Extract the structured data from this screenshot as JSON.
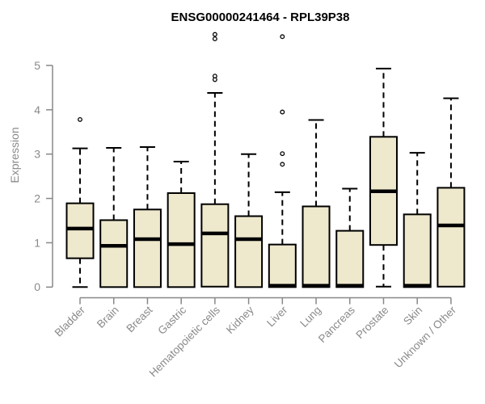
{
  "colors": {
    "background": "#FFFFFF",
    "box_fill": "#EEE8CD",
    "box_stroke": "#000000",
    "median": "#000000",
    "whisker": "#000000",
    "outlier_stroke": "#000000",
    "axis": "#888888",
    "tick_label": "#8A8A8A",
    "title": "#000000"
  },
  "chart_data": {
    "type": "boxplot",
    "title": "ENSG00000241464 - RPL39P38",
    "xlabel": "",
    "ylabel": "Expression",
    "ylim": [
      0,
      5
    ],
    "yticks": [
      0,
      1,
      2,
      3,
      4,
      5
    ],
    "grid": false,
    "legend": "none",
    "categories": [
      "Bladder",
      "Brain",
      "Breast",
      "Gastric",
      "Hematopoietic cells",
      "Kidney",
      "Liver",
      "Lung",
      "Pancreas",
      "Prostate",
      "Skin",
      "Unknown / Other"
    ],
    "series": [
      {
        "name": "Bladder",
        "whisker_low": 0.0,
        "q1": 0.65,
        "median": 1.32,
        "q3": 1.89,
        "whisker_high": 3.13,
        "outliers": [
          3.78
        ]
      },
      {
        "name": "Brain",
        "whisker_low": 0.0,
        "q1": 0.0,
        "median": 0.93,
        "q3": 1.51,
        "whisker_high": 3.14,
        "outliers": []
      },
      {
        "name": "Breast",
        "whisker_low": 0.0,
        "q1": 0.0,
        "median": 1.08,
        "q3": 1.75,
        "whisker_high": 3.16,
        "outliers": []
      },
      {
        "name": "Gastric",
        "whisker_low": 0.0,
        "q1": 0.0,
        "median": 0.97,
        "q3": 2.12,
        "whisker_high": 2.83,
        "outliers": []
      },
      {
        "name": "Hematopoietic cells",
        "whisker_low": 0.01,
        "q1": 0.01,
        "median": 1.21,
        "q3": 1.87,
        "whisker_high": 4.38,
        "outliers": [
          4.68,
          4.76,
          5.6,
          5.7
        ]
      },
      {
        "name": "Kidney",
        "whisker_low": 0.0,
        "q1": 0.0,
        "median": 1.08,
        "q3": 1.6,
        "whisker_high": 3.0,
        "outliers": []
      },
      {
        "name": "Liver",
        "whisker_low": 0.0,
        "q1": 0.0,
        "median": 0.03,
        "q3": 0.96,
        "whisker_high": 2.14,
        "outliers": [
          2.77,
          3.01,
          3.95,
          5.65
        ]
      },
      {
        "name": "Lung",
        "whisker_low": 0.0,
        "q1": 0.0,
        "median": 0.03,
        "q3": 1.82,
        "whisker_high": 3.77,
        "outliers": []
      },
      {
        "name": "Pancreas",
        "whisker_low": 0.0,
        "q1": 0.0,
        "median": 0.03,
        "q3": 1.27,
        "whisker_high": 2.22,
        "outliers": []
      },
      {
        "name": "Prostate",
        "whisker_low": 0.01,
        "q1": 0.95,
        "median": 2.16,
        "q3": 3.39,
        "whisker_high": 4.93,
        "outliers": []
      },
      {
        "name": "Skin",
        "whisker_low": 0.0,
        "q1": 0.0,
        "median": 0.03,
        "q3": 1.64,
        "whisker_high": 3.03,
        "outliers": []
      },
      {
        "name": "Unknown / Other",
        "whisker_low": 0.01,
        "q1": 0.01,
        "median": 1.39,
        "q3": 2.24,
        "whisker_high": 4.26,
        "outliers": []
      }
    ]
  }
}
